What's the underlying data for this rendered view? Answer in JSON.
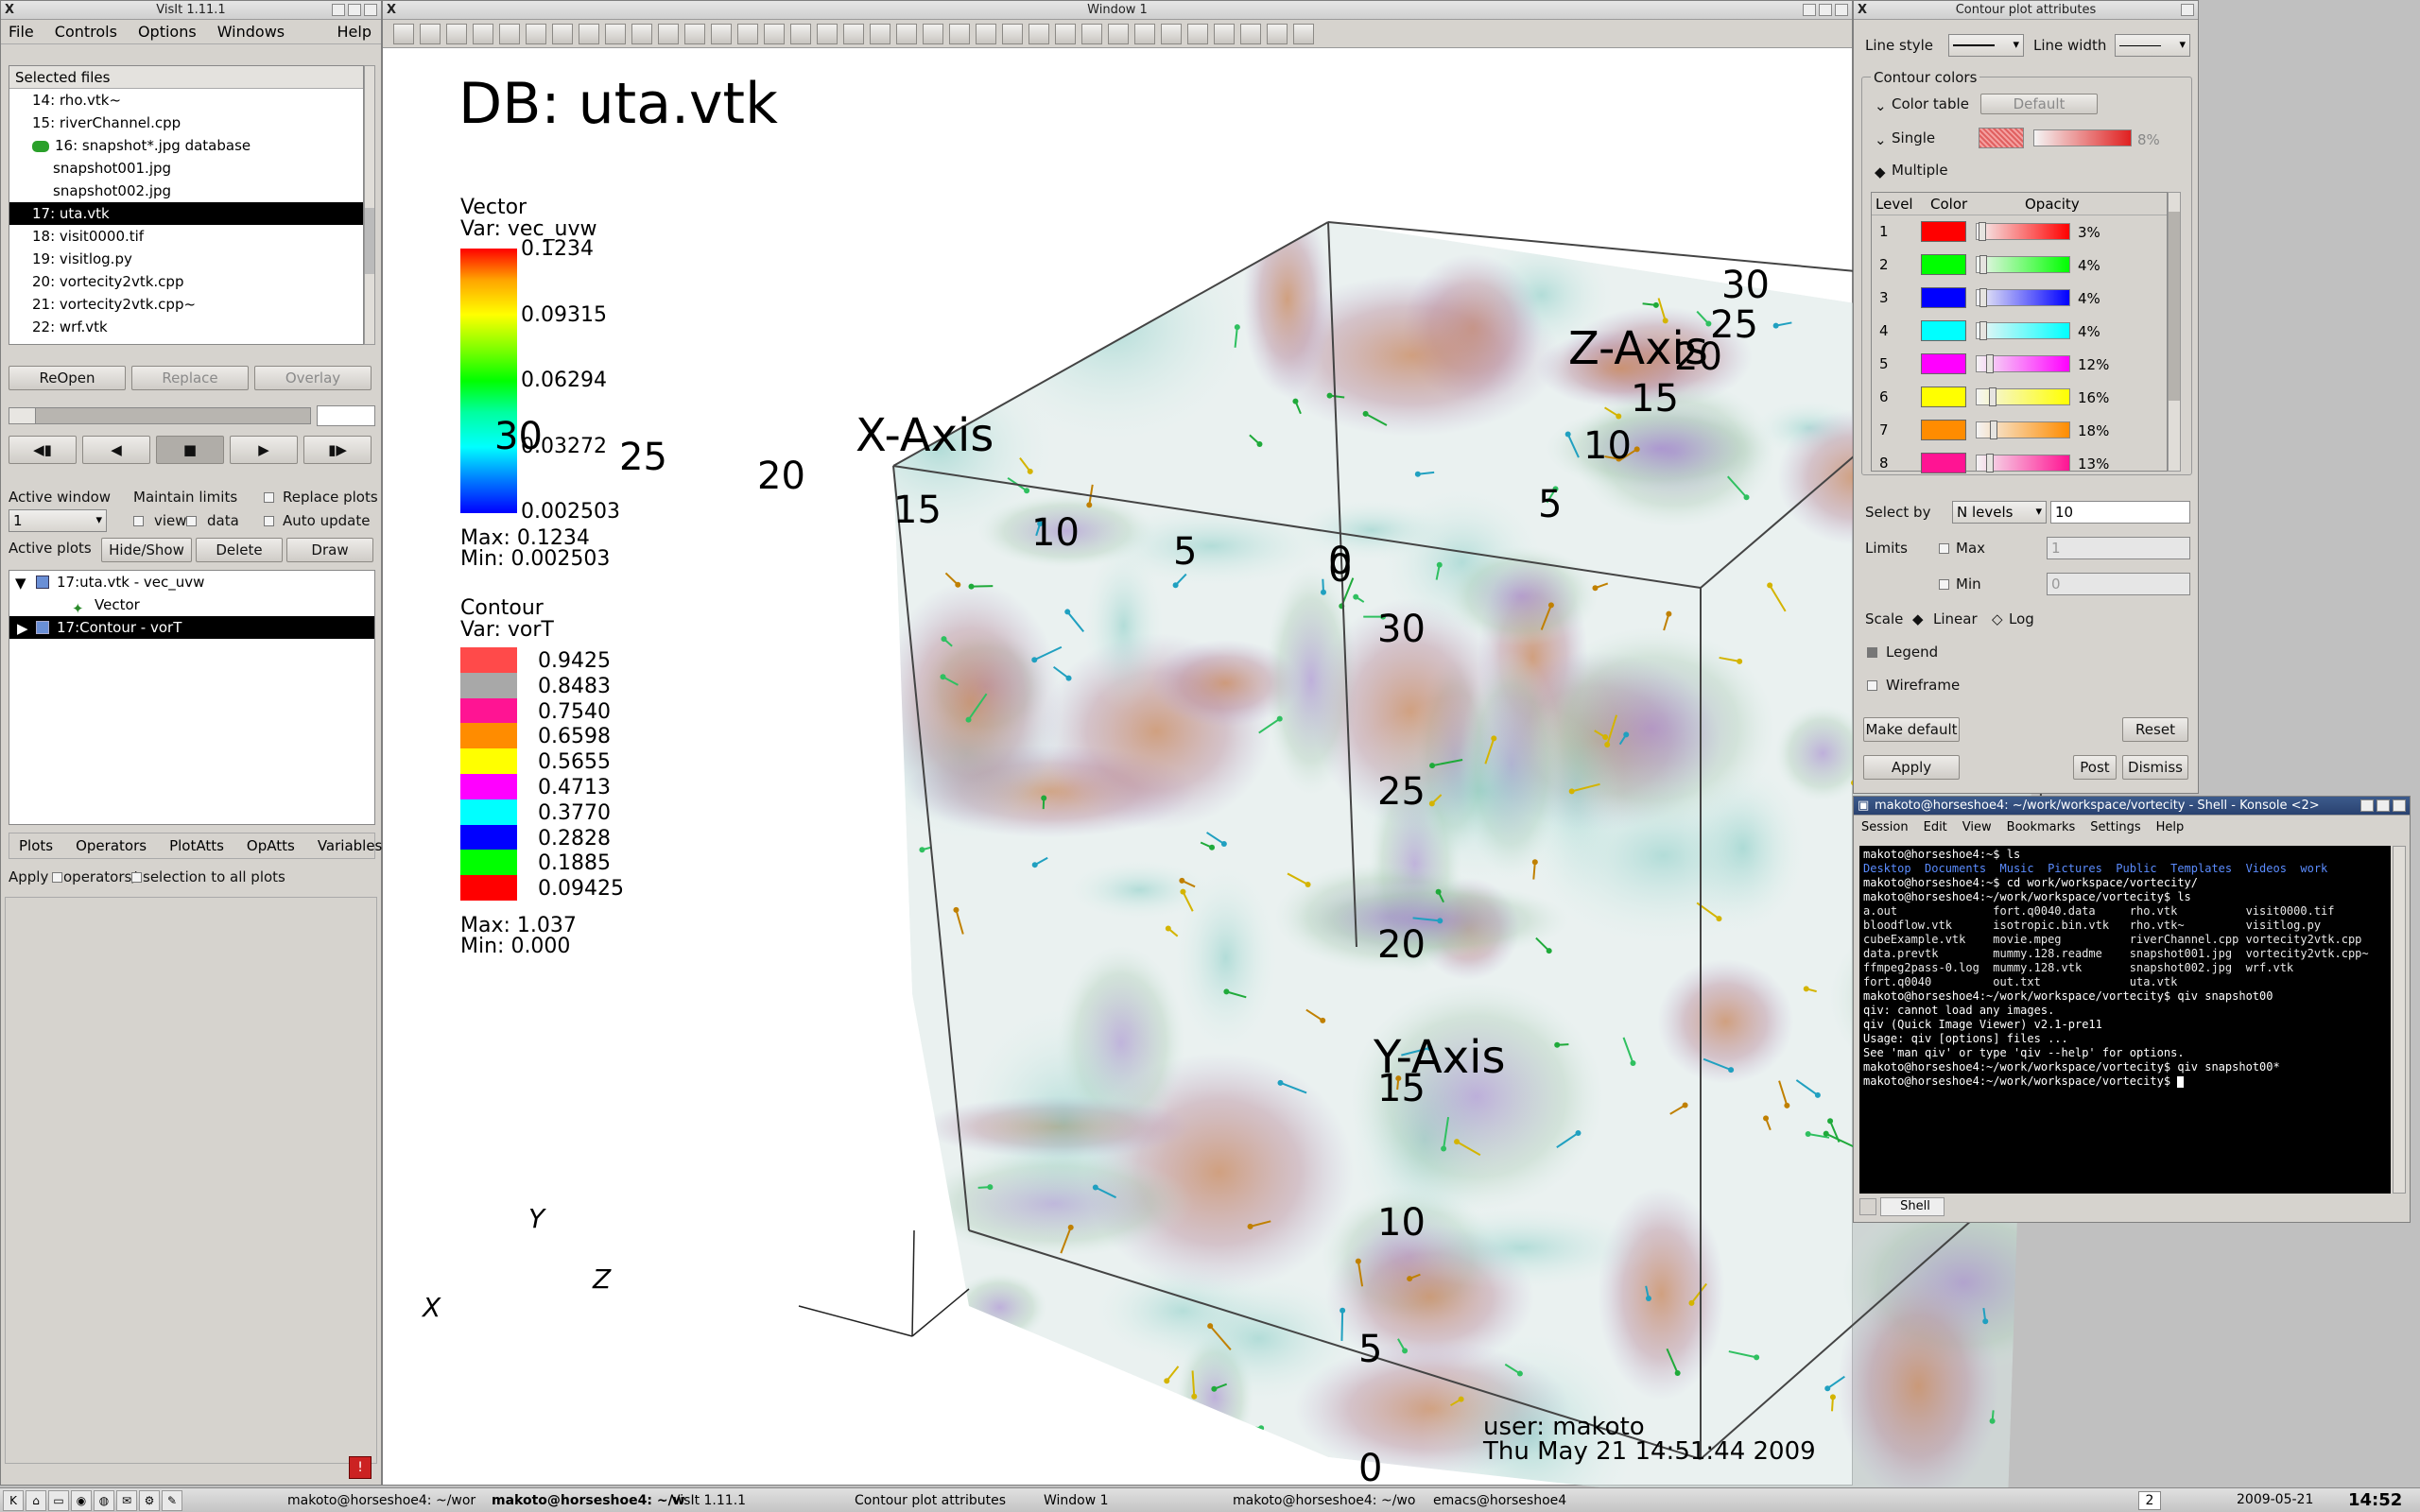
{
  "visit": {
    "title": "VisIt 1.11.1",
    "menu": [
      "File",
      "Controls",
      "Options",
      "Windows",
      "Help"
    ],
    "selected_files_label": "Selected files",
    "files": [
      {
        "label": "14: rho.vtk~",
        "indent": 1
      },
      {
        "label": "15: riverChannel.cpp",
        "indent": 1
      },
      {
        "label": "16: snapshot*.jpg database",
        "indent": 1,
        "db": true
      },
      {
        "label": "snapshot001.jpg",
        "indent": 2
      },
      {
        "label": "snapshot002.jpg",
        "indent": 2
      },
      {
        "label": "17: uta.vtk",
        "indent": 1,
        "selected": true
      },
      {
        "label": "18: visit0000.tif",
        "indent": 1
      },
      {
        "label": "19: visitlog.py",
        "indent": 1
      },
      {
        "label": "20: vortecity2vtk.cpp",
        "indent": 1
      },
      {
        "label": "21: vortecity2vtk.cpp~",
        "indent": 1
      },
      {
        "label": "22: wrf.vtk",
        "indent": 1
      }
    ],
    "reopen": "ReOpen",
    "replace": "Replace",
    "overlay": "Overlay",
    "active_window_label": "Active window",
    "active_window_value": "1",
    "maintain_limits": "Maintain limits",
    "view": "view",
    "data": "data",
    "replace_plots": "Replace plots",
    "auto_update": "Auto update",
    "active_plots_label": "Active plots",
    "hide_show": "Hide/Show",
    "delete": "Delete",
    "draw": "Draw",
    "plots": [
      {
        "label": "17:uta.vtk - vec_uvw",
        "sub": "Vector"
      },
      {
        "label": "17:Contour - vorT",
        "selected": true
      }
    ],
    "bottom_menu": [
      "Plots",
      "Operators",
      "PlotAtts",
      "OpAtts",
      "Variables"
    ],
    "apply_text": "Apply",
    "apply_operators": "operators/",
    "apply_selection": "selection to all plots"
  },
  "window1": {
    "title": "Window 1",
    "db_title": "DB: uta.vtk",
    "vector_legend": {
      "title": "Vector",
      "var": "Var: vec_uvw",
      "ticks": [
        "0.1234",
        "0.09315",
        "0.06294",
        "0.03272",
        "0.002503"
      ],
      "max": "Max:  0.1234",
      "min": "Min:  0.002503"
    },
    "contour_legend": {
      "title": "Contour",
      "var": "Var: vorT",
      "levels": [
        {
          "value": "0.9425",
          "color": "#ff4a4a"
        },
        {
          "value": "0.8483",
          "color": "#a8a8a8"
        },
        {
          "value": "0.7540",
          "color": "#ff1493"
        },
        {
          "value": "0.6598",
          "color": "#ff8c00"
        },
        {
          "value": "0.5655",
          "color": "#ffff00"
        },
        {
          "value": "0.4713",
          "color": "#ff00ff"
        },
        {
          "value": "0.3770",
          "color": "#00ffff"
        },
        {
          "value": "0.2828",
          "color": "#0000ff"
        },
        {
          "value": "0.1885",
          "color": "#00ff00"
        },
        {
          "value": "0.09425",
          "color": "#ff0000"
        }
      ],
      "max": "Max:  1.037",
      "min": "Min:  0.000"
    },
    "axes": {
      "x_title": "X-Axis",
      "y_title": "Y-Axis",
      "z_title": "Z-Axis",
      "x_ticks": [
        "25",
        "20",
        "15",
        "10",
        "5",
        "0",
        "30"
      ],
      "y_ticks": [
        "30",
        "25",
        "20",
        "15",
        "10",
        "5",
        "0"
      ],
      "z_ticks": [
        "30",
        "25",
        "20",
        "15",
        "10",
        "5",
        "0"
      ]
    },
    "triad": {
      "x": "X",
      "y": "Y",
      "z": "Z"
    },
    "user": "user: makoto",
    "date": "Thu May 21 14:51:44 2009"
  },
  "contour_attrs": {
    "title": "Contour plot attributes",
    "line_style": "Line style",
    "line_width": "Line width",
    "contour_colors": "Contour colors",
    "color_table": "Color table",
    "default_btn": "Default",
    "single": "Single",
    "single_pct": "8%",
    "multiple": "Multiple",
    "table_headers": [
      "Level",
      "Color",
      "Opacity"
    ],
    "levels": [
      {
        "n": "1",
        "color": "#ff0000",
        "pct": "3%"
      },
      {
        "n": "2",
        "color": "#00ff00",
        "pct": "4%"
      },
      {
        "n": "3",
        "color": "#0000ff",
        "pct": "4%"
      },
      {
        "n": "4",
        "color": "#00ffff",
        "pct": "4%"
      },
      {
        "n": "5",
        "color": "#ff00ff",
        "pct": "12%"
      },
      {
        "n": "6",
        "color": "#ffff00",
        "pct": "16%"
      },
      {
        "n": "7",
        "color": "#ff8c00",
        "pct": "18%"
      },
      {
        "n": "8",
        "color": "#ff1493",
        "pct": "13%"
      }
    ],
    "select_by": "Select by",
    "select_by_value": "N levels",
    "n_levels_value": "10",
    "limits": "Limits",
    "max": "Max",
    "max_value": "1",
    "min": "Min",
    "min_value": "0",
    "scale": "Scale",
    "linear": "Linear",
    "log": "Log",
    "legend": "Legend",
    "wireframe": "Wireframe",
    "make_default": "Make default",
    "reset": "Reset",
    "apply": "Apply",
    "post": "Post",
    "dismiss": "Dismiss"
  },
  "konsole": {
    "title": "makoto@horseshoe4: ~/work/workspace/vortecity - Shell - Konsole <2>",
    "menu": [
      "Session",
      "Edit",
      "View",
      "Bookmarks",
      "Settings",
      "Help"
    ],
    "lines": [
      "makoto@horseshoe4:~$ ls",
      "Desktop  Documents  Music  Pictures  Public  Templates  Videos  work",
      "makoto@horseshoe4:~$ cd work/workspace/vortecity/",
      "makoto@horseshoe4:~/work/workspace/vortecity$ ls",
      "a.out              fort.q0040.data     rho.vtk          visit0000.tif",
      "bloodflow.vtk      isotropic.bin.vtk   rho.vtk~         visitlog.py",
      "cubeExample.vtk    movie.mpeg          riverChannel.cpp vortecity2vtk.cpp",
      "data.prevtk        mummy.128.readme    snapshot001.jpg  vortecity2vtk.cpp~",
      "ffmpeg2pass-0.log  mummy.128.vtk       snapshot002.jpg  wrf.vtk",
      "fort.q0040         out.txt             uta.vtk",
      "makoto@horseshoe4:~/work/workspace/vortecity$ qiv snapshot00",
      "qiv: cannot load any images.",
      "qiv (Quick Image Viewer) v2.1-pre11",
      "Usage: qiv [options] files ...",
      "See 'man qiv' or type 'qiv --help' for options.",
      "makoto@horseshoe4:~/work/workspace/vortecity$ qiv snapshot00*",
      "makoto@horseshoe4:~/work/workspace/vortecity$ "
    ],
    "tab": "Shell"
  },
  "taskbar": {
    "tasks": [
      "makoto@horseshoe4: ~/wor",
      "makoto@horseshoe4: ~/w",
      "VisIt 1.11.1",
      "Contour plot attributes",
      "Window 1",
      "makoto@horseshoe4: ~/wo",
      "emacs@horseshoe4"
    ],
    "desktop": "2",
    "date": "2009-05-21",
    "time": "14:52"
  },
  "colors": {
    "selection": "#000000",
    "term_blue": "#5b8cff",
    "term_green": "#4fd44f",
    "term_magenta": "#ff55ff",
    "term_cyan": "#55dddd"
  }
}
